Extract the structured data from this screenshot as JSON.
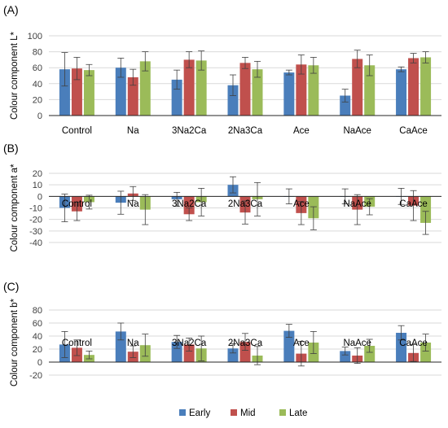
{
  "colors": {
    "Early": "#4a7ebb",
    "Mid": "#c0504d",
    "Late": "#9bbb59"
  },
  "legend": [
    {
      "label": "Early",
      "color": "#4a7ebb"
    },
    {
      "label": "Mid",
      "color": "#c0504d"
    },
    {
      "label": "Late",
      "color": "#9bbb59"
    }
  ],
  "chart_data": [
    {
      "type": "bar",
      "panel_label": "(A)",
      "title": "",
      "xlabel": "",
      "ylabel": "Colour component L*",
      "ylim": [
        0,
        100
      ],
      "yticks": [
        0,
        20,
        40,
        60,
        80,
        100
      ],
      "categories": [
        "Control",
        "Na",
        "3Na2Ca",
        "2Na3Ca",
        "Ace",
        "NaAce",
        "CaAce"
      ],
      "grid": true,
      "legend": "bottom",
      "series": [
        {
          "name": "Early",
          "values": [
            58,
            60,
            45,
            38,
            54,
            25,
            58
          ],
          "errors": [
            21,
            12,
            12,
            13,
            3,
            8,
            3
          ]
        },
        {
          "name": "Mid",
          "values": [
            59,
            48,
            70,
            66,
            64,
            71,
            72
          ],
          "errors": [
            14,
            10,
            10,
            7,
            12,
            11,
            6
          ]
        },
        {
          "name": "Late",
          "values": [
            57,
            68,
            69,
            58,
            63,
            63,
            73
          ],
          "errors": [
            7,
            12,
            12,
            10,
            10,
            13,
            7
          ]
        }
      ]
    },
    {
      "type": "bar",
      "panel_label": "(B)",
      "title": "",
      "xlabel": "",
      "ylabel": "Colour component a*",
      "ylim": [
        -40,
        20
      ],
      "yticks": [
        -40,
        -30,
        -20,
        -10,
        0,
        10,
        20
      ],
      "categories": [
        "Control",
        "Na",
        "3Na2Ca",
        "2Na3Ca",
        "Ace",
        "NaAce",
        "CaAce"
      ],
      "grid": true,
      "legend": "bottom",
      "series": [
        {
          "name": "Early",
          "values": [
            -10,
            -5.5,
            -2.5,
            10,
            0,
            0,
            0
          ],
          "errors": [
            12,
            10,
            6,
            7,
            6.5,
            6.5,
            7
          ]
        },
        {
          "name": "Mid",
          "values": [
            -13,
            2.5,
            -15.5,
            -14,
            -14.5,
            -11.5,
            -8
          ],
          "errors": [
            8,
            6,
            5.5,
            10,
            10,
            13,
            13
          ]
        },
        {
          "name": "Late",
          "values": [
            -5,
            -11.5,
            -5,
            -2.5,
            -19,
            -9,
            -23
          ],
          "errors": [
            6,
            13,
            12,
            14.5,
            10,
            7,
            10
          ]
        }
      ]
    },
    {
      "type": "bar",
      "panel_label": "(C)",
      "title": "",
      "xlabel": "",
      "ylabel": "Colour component b*",
      "ylim": [
        -20,
        80
      ],
      "yticks": [
        -20,
        0,
        20,
        40,
        60,
        80
      ],
      "categories": [
        "Control",
        "Na",
        "3Na2Ca",
        "2Na3Ca",
        "Ace",
        "NaAce",
        "CaAce"
      ],
      "grid": true,
      "legend": "bottom",
      "series": [
        {
          "name": "Early",
          "values": [
            27,
            47,
            31,
            21,
            48,
            17,
            45
          ],
          "errors": [
            20,
            13,
            10,
            7,
            10,
            6,
            11
          ]
        },
        {
          "name": "Mid",
          "values": [
            22,
            16,
            27,
            31,
            13,
            10,
            14
          ],
          "errors": [
            12,
            9,
            10,
            13,
            19,
            12,
            13
          ]
        },
        {
          "name": "Late",
          "values": [
            11,
            26,
            21,
            10,
            30,
            25,
            30
          ],
          "errors": [
            6,
            17,
            19,
            14,
            17,
            10,
            13
          ]
        }
      ]
    }
  ]
}
